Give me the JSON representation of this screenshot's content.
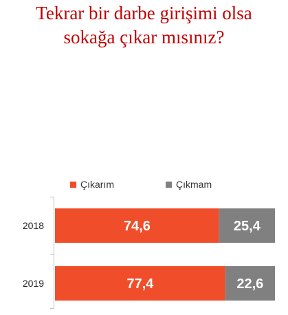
{
  "colors": {
    "title": "#c00000",
    "cikarim": "#f04e2a",
    "cikmam": "#808080",
    "axis": "#bfbfbf",
    "bar_label": "#ffffff"
  },
  "chart_data": {
    "type": "bar",
    "orientation": "horizontal",
    "stacked": true,
    "title_lines": [
      "Tekrar bir darbe girişimi olsa",
      "sokağa çıkar mısınız?"
    ],
    "categories": [
      "2018",
      "2019"
    ],
    "series": [
      {
        "name": "Çıkarım",
        "values": [
          74.6,
          77.4
        ]
      },
      {
        "name": "Çıkmam",
        "values": [
          25.4,
          22.6
        ]
      }
    ],
    "data_labels": [
      [
        "74,6",
        "77,4"
      ],
      [
        "25,4",
        "22,6"
      ]
    ],
    "xlim": [
      0,
      100
    ],
    "legend": "top-center",
    "grid": false
  }
}
